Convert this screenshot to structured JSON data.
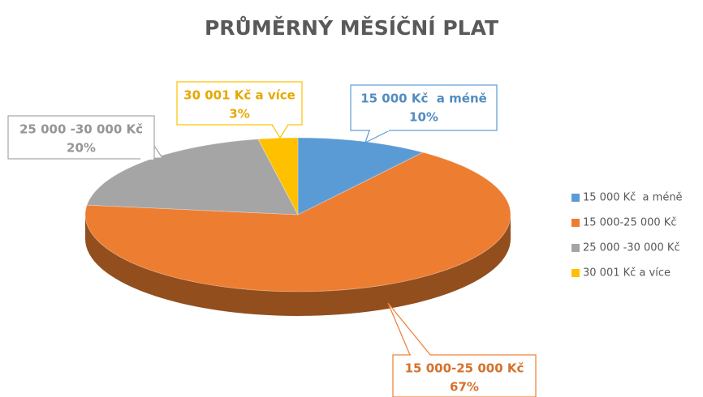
{
  "chart_data": {
    "type": "pie",
    "title": "PRŮMĚRNÝ MĚSÍČNÍ PLAT",
    "categories": [
      "15 000 Kč  a méně",
      "15 000-25 000 Kč",
      "25 000 -30 000 Kč",
      "30 001 Kč a více"
    ],
    "values": [
      10,
      67,
      20,
      3
    ],
    "value_labels": [
      "10%",
      "67%",
      "20%",
      "3%"
    ],
    "colors": [
      "#5b9bd5",
      "#ed7d31",
      "#a5a5a5",
      "#ffc000"
    ],
    "legend": "right"
  }
}
